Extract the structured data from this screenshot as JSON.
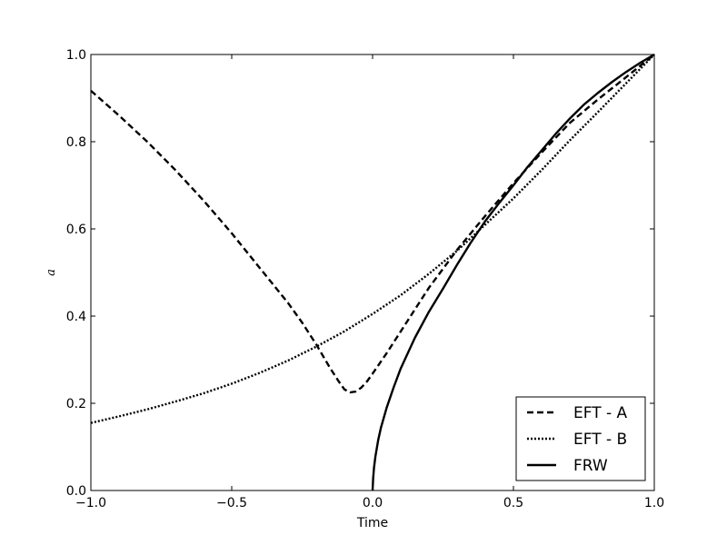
{
  "chart_data": {
    "type": "line",
    "title": "",
    "xlabel": "Time",
    "ylabel": "a",
    "xlim": [
      -1.0,
      1.0
    ],
    "ylim": [
      0.0,
      1.0
    ],
    "x_ticks": [
      "−1.0",
      "−0.5",
      "0.0",
      "0.5",
      "1.0"
    ],
    "y_ticks": [
      "0.0",
      "0.2",
      "0.4",
      "0.6",
      "0.8",
      "1.0"
    ],
    "grid": false,
    "legend_position": "bottom-right",
    "series": [
      {
        "name": "EFT - A",
        "style": "dashed",
        "color": "#000000",
        "points": [
          [
            -1.0,
            0.917
          ],
          [
            -0.9,
            0.86
          ],
          [
            -0.8,
            0.8
          ],
          [
            -0.7,
            0.735
          ],
          [
            -0.6,
            0.665
          ],
          [
            -0.5,
            0.59
          ],
          [
            -0.4,
            0.51
          ],
          [
            -0.3,
            0.43
          ],
          [
            -0.25,
            0.385
          ],
          [
            -0.2,
            0.335
          ],
          [
            -0.15,
            0.28
          ],
          [
            -0.12,
            0.25
          ],
          [
            -0.1,
            0.232
          ],
          [
            -0.08,
            0.225
          ],
          [
            -0.06,
            0.227
          ],
          [
            -0.04,
            0.236
          ],
          [
            -0.02,
            0.25
          ],
          [
            0.0,
            0.268
          ],
          [
            0.05,
            0.315
          ],
          [
            0.1,
            0.365
          ],
          [
            0.15,
            0.415
          ],
          [
            0.2,
            0.465
          ],
          [
            0.3,
            0.552
          ],
          [
            0.4,
            0.63
          ],
          [
            0.5,
            0.705
          ],
          [
            0.6,
            0.775
          ],
          [
            0.7,
            0.843
          ],
          [
            0.8,
            0.897
          ],
          [
            0.9,
            0.948
          ],
          [
            1.0,
            1.0
          ]
        ]
      },
      {
        "name": "EFT - B",
        "style": "dotted",
        "color": "#000000",
        "points": [
          [
            -1.0,
            0.155
          ],
          [
            -0.9,
            0.17
          ],
          [
            -0.8,
            0.186
          ],
          [
            -0.7,
            0.204
          ],
          [
            -0.6,
            0.223
          ],
          [
            -0.5,
            0.245
          ],
          [
            -0.4,
            0.27
          ],
          [
            -0.3,
            0.298
          ],
          [
            -0.2,
            0.33
          ],
          [
            -0.1,
            0.365
          ],
          [
            0.0,
            0.405
          ],
          [
            0.1,
            0.448
          ],
          [
            0.2,
            0.497
          ],
          [
            0.3,
            0.55
          ],
          [
            0.4,
            0.61
          ],
          [
            0.5,
            0.67
          ],
          [
            0.6,
            0.735
          ],
          [
            0.7,
            0.803
          ],
          [
            0.8,
            0.868
          ],
          [
            0.9,
            0.934
          ],
          [
            1.0,
            1.0
          ]
        ]
      },
      {
        "name": "FRW",
        "style": "solid",
        "color": "#000000",
        "points": [
          [
            0.0,
            0.0
          ],
          [
            0.002,
            0.028
          ],
          [
            0.005,
            0.052
          ],
          [
            0.01,
            0.078
          ],
          [
            0.02,
            0.116
          ],
          [
            0.03,
            0.145
          ],
          [
            0.05,
            0.19
          ],
          [
            0.075,
            0.237
          ],
          [
            0.1,
            0.28
          ],
          [
            0.15,
            0.35
          ],
          [
            0.2,
            0.41
          ],
          [
            0.25,
            0.463
          ],
          [
            0.3,
            0.518
          ],
          [
            0.35,
            0.57
          ],
          [
            0.4,
            0.618
          ],
          [
            0.45,
            0.66
          ],
          [
            0.5,
            0.7
          ],
          [
            0.55,
            0.742
          ],
          [
            0.6,
            0.78
          ],
          [
            0.65,
            0.818
          ],
          [
            0.7,
            0.853
          ],
          [
            0.75,
            0.885
          ],
          [
            0.8,
            0.912
          ],
          [
            0.85,
            0.937
          ],
          [
            0.9,
            0.96
          ],
          [
            0.95,
            0.981
          ],
          [
            1.0,
            1.0
          ]
        ]
      }
    ]
  }
}
